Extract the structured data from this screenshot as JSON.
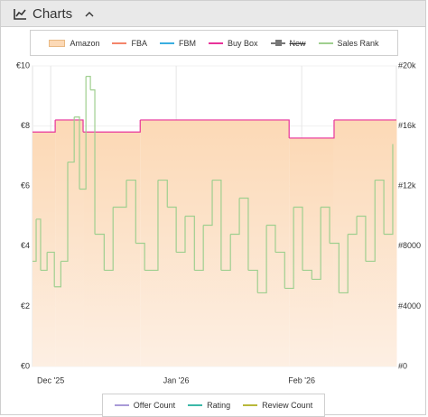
{
  "header": {
    "title": "Charts"
  },
  "chart_data": {
    "type": "step",
    "xlim": [
      -4.5,
      85.4
    ],
    "xticks": [
      {
        "value": 0,
        "label": "Dec '25"
      },
      {
        "value": 31,
        "label": "Jan '26"
      },
      {
        "value": 62,
        "label": "Feb '26"
      }
    ],
    "ylim": [
      0,
      10
    ],
    "yticks": [
      {
        "value": 0,
        "label": "€0"
      },
      {
        "value": 2,
        "label": "€2"
      },
      {
        "value": 4,
        "label": "€4"
      },
      {
        "value": 6,
        "label": "€6"
      },
      {
        "value": 8,
        "label": "€8"
      },
      {
        "value": 10,
        "label": "€10"
      }
    ],
    "y2lim": [
      0,
      20000
    ],
    "y2ticks": [
      {
        "value": 0,
        "label": "#0"
      },
      {
        "value": 4000,
        "label": "#4000"
      },
      {
        "value": 8000,
        "label": "#8000"
      },
      {
        "value": 12000,
        "label": "#12k"
      },
      {
        "value": 16000,
        "label": "#16k"
      },
      {
        "value": 20000,
        "label": "#20k"
      }
    ],
    "grid": true,
    "series": [
      {
        "name": "Amazon",
        "color": "#fcd9b6",
        "style": "area",
        "legend": "top",
        "x": [
          -4.5,
          1.1,
          8.0,
          22.1,
          58.9,
          70.0,
          85.4
        ],
        "values": [
          7.8,
          8.2,
          7.8,
          8.2,
          7.6,
          8.2,
          8.2
        ]
      },
      {
        "name": "FBA",
        "color": "#f4856b",
        "legend": "top",
        "x": [],
        "values": []
      },
      {
        "name": "FBM",
        "color": "#3aaee0",
        "legend": "top",
        "x": [],
        "values": []
      },
      {
        "name": "Buy Box",
        "color": "#e8339a",
        "legend": "top",
        "x": [
          -4.5,
          1.1,
          8.0,
          22.1,
          58.9,
          70.0,
          85.4
        ],
        "values": [
          7.8,
          8.2,
          7.8,
          8.2,
          7.6,
          8.2,
          8.2
        ]
      },
      {
        "name": "New",
        "color": "#777777",
        "legend": "top",
        "hidden": true,
        "x": [],
        "values": []
      },
      {
        "name": "Sales Rank",
        "color": "#9fcf8f",
        "legend": "top",
        "axis": "y2",
        "x": [
          -4.5,
          -3.6,
          -2.5,
          -0.9,
          0.9,
          2.5,
          4.2,
          5.8,
          7.1,
          8.7,
          9.8,
          10.9,
          13.2,
          15.4,
          18.7,
          21.0,
          23.2,
          26.5,
          28.8,
          31.0,
          33.2,
          35.5,
          37.7,
          39.9,
          42.1,
          44.4,
          46.6,
          48.8,
          51.1,
          53.3,
          55.5,
          57.8,
          60.0,
          62.2,
          64.5,
          66.7,
          68.9,
          71.2,
          73.4,
          75.6,
          77.8,
          80.1,
          82.3,
          84.5
        ],
        "values": [
          7000,
          9800,
          6400,
          7600,
          5300,
          7000,
          13600,
          16600,
          11800,
          19300,
          18400,
          8800,
          6400,
          10600,
          12400,
          8200,
          6400,
          12400,
          10600,
          7600,
          10000,
          6400,
          9400,
          12400,
          6400,
          8800,
          11200,
          6400,
          4900,
          9400,
          7600,
          5200,
          10600,
          6400,
          5800,
          10600,
          8200,
          4900,
          8800,
          10000,
          7000,
          12400,
          8800,
          14800
        ]
      },
      {
        "name": "Offer Count",
        "color": "#a99ad8",
        "legend": "bottom",
        "x": [],
        "values": []
      },
      {
        "name": "Rating",
        "color": "#3cb8a8",
        "legend": "bottom",
        "x": [],
        "values": []
      },
      {
        "name": "Review Count",
        "color": "#b8b83a",
        "legend": "bottom",
        "x": [],
        "values": []
      }
    ]
  }
}
